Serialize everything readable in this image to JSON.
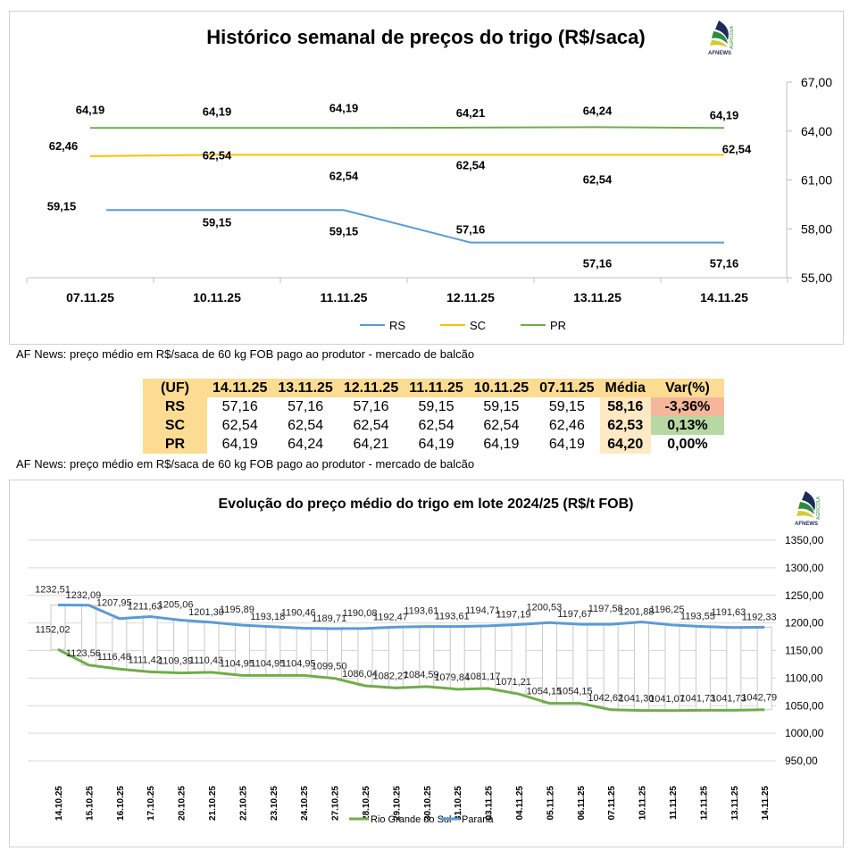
{
  "chart_data": [
    {
      "type": "line",
      "title": "Histórico semanal de preços do trigo (R$/saca)",
      "categories": [
        "07.11.25",
        "10.11.25",
        "11.11.25",
        "12.11.25",
        "13.11.25",
        "14.11.25"
      ],
      "ylim": [
        55,
        67
      ],
      "yticks": [
        "55,00",
        "58,00",
        "61,00",
        "64,00",
        "67,00"
      ],
      "y_axis_side": "right",
      "grid": false,
      "legend_placement": "bottom",
      "series": [
        {
          "name": "RS",
          "color": "#5b9bd5",
          "values": [
            59.15,
            59.15,
            59.15,
            57.16,
            57.16,
            57.16
          ],
          "labels": [
            "59,15",
            "59,15",
            "59,15",
            "57,16",
            "57,16",
            "57,16"
          ]
        },
        {
          "name": "SC",
          "color": "#ffc000",
          "values": [
            62.46,
            62.54,
            62.54,
            62.54,
            62.54,
            62.54
          ],
          "labels": [
            "62,46",
            "62,54",
            "62,54",
            "62,54",
            "62,54",
            "62,54"
          ]
        },
        {
          "name": "PR",
          "color": "#70ad47",
          "values": [
            64.19,
            64.19,
            64.19,
            64.21,
            64.24,
            64.19
          ],
          "labels": [
            "64,19",
            "64,19",
            "64,19",
            "64,21",
            "64,24",
            "64,19"
          ]
        }
      ]
    },
    {
      "type": "line",
      "title": "Evolução do preço médio do trigo em lote 2024/25 (R$/t FOB)",
      "categories": [
        "14.10.25",
        "15.10.25",
        "16.10.25",
        "17.10.25",
        "20.10.25",
        "21.10.25",
        "22.10.25",
        "23.10.25",
        "24.10.25",
        "27.10.25",
        "28.10.25",
        "29.10.25",
        "30.10.25",
        "31.10.25",
        "03.11.25",
        "04.11.25",
        "05.11.25",
        "06.11.25",
        "07.11.25",
        "10.11.25",
        "11.11.25",
        "12.11.25",
        "13.11.25",
        "14.11.25"
      ],
      "ylim": [
        950,
        1350
      ],
      "yticks": [
        "950,00",
        "1000,00",
        "1050,00",
        "1100,00",
        "1150,00",
        "1200,00",
        "1250,00",
        "1300,00",
        "1350,00"
      ],
      "y_axis_side": "right",
      "grid": true,
      "high_low_bars": true,
      "legend_placement": "bottom",
      "series": [
        {
          "name": "Rio Grande do Sul",
          "color": "#70ad47",
          "values": [
            1152.02,
            1123.56,
            1116.48,
            1111.42,
            1109.39,
            1110.43,
            1104.95,
            1104.95,
            1104.95,
            1099.5,
            1086.04,
            1082.27,
            1084.59,
            1079.84,
            1081.17,
            1071.21,
            1054.15,
            1054.15,
            1042.62,
            1041.3,
            1041.07,
            1041.73,
            1041.73,
            1042.79
          ]
        },
        {
          "name": "Paraná",
          "color": "#5b9bd5",
          "values": [
            1232.51,
            1232.09,
            1207.95,
            1211.63,
            1205.06,
            1201.3,
            1195.89,
            1193.18,
            1190.46,
            1189.71,
            1190.08,
            1192.47,
            1193.61,
            1193.61,
            1194.71,
            1197.19,
            1200.53,
            1197.67,
            1197.58,
            1201.88,
            1196.25,
            1193.55,
            1191.63,
            1192.33
          ]
        }
      ]
    }
  ],
  "logo": {
    "text": "AFNEWS",
    "subtext": "AGRÍCOLA"
  },
  "caption1": "AF News: preço médio em R$/saca de 60 kg FOB pago ao produtor - mercado de balcão",
  "caption2": "AF News: preço médio em R$/saca de 60 kg FOB pago ao produtor - mercado de balcão",
  "table": {
    "headers": [
      "(UF)",
      "14.11.25",
      "13.11.25",
      "12.11.25",
      "11.11.25",
      "10.11.25",
      "07.11.25",
      "Média",
      "Var(%)"
    ],
    "rows": [
      {
        "uf": "RS",
        "values": [
          "57,16",
          "57,16",
          "57,16",
          "59,15",
          "59,15",
          "59,15"
        ],
        "media": "58,16",
        "var": "-3,36%"
      },
      {
        "uf": "SC",
        "values": [
          "62,54",
          "62,54",
          "62,54",
          "62,54",
          "62,54",
          "62,46"
        ],
        "media": "62,53",
        "var": "0,13%"
      },
      {
        "uf": "PR",
        "values": [
          "64,19",
          "64,24",
          "64,21",
          "64,19",
          "64,19",
          "64,19"
        ],
        "media": "64,20",
        "var": "0,00%"
      }
    ]
  }
}
